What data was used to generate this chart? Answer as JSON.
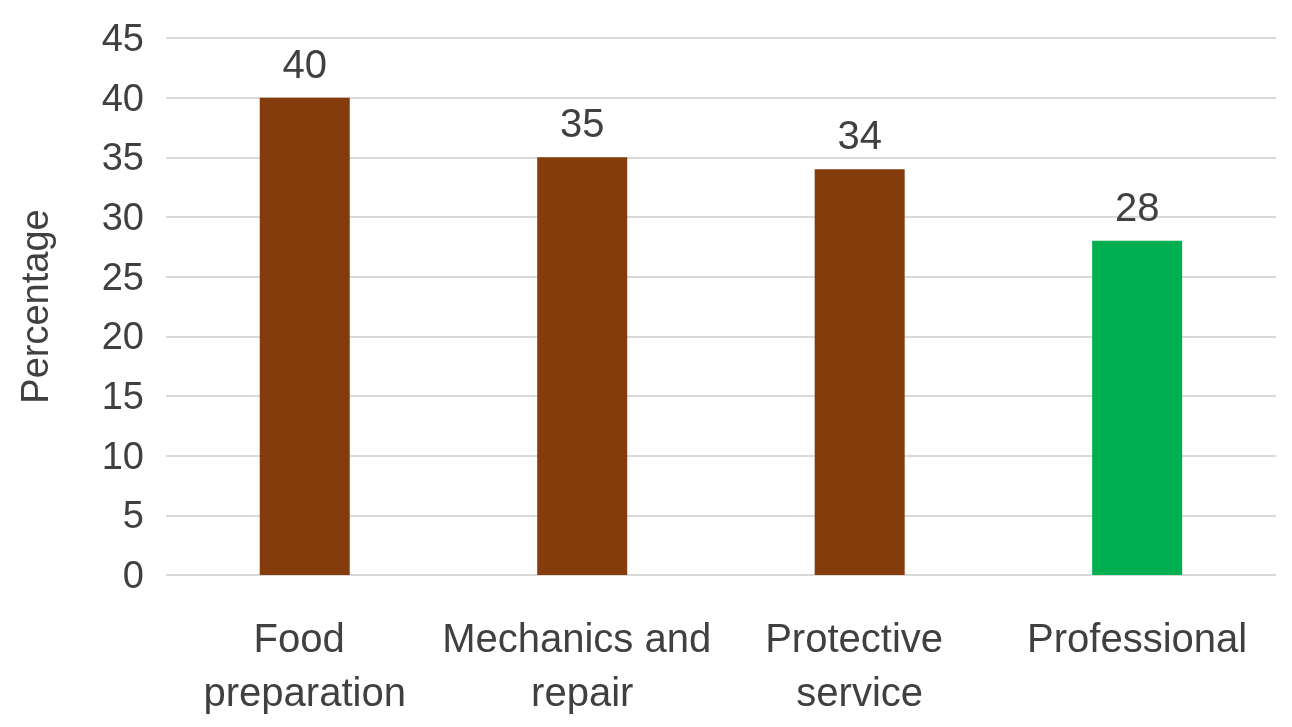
{
  "chart_data": {
    "type": "bar",
    "ylabel": "Percentage",
    "categories": [
      "Food preparation",
      "Mechanics and repair",
      "Protective service",
      "Professional"
    ],
    "values": [
      40,
      35,
      34,
      28
    ],
    "colors": [
      "#843c0c",
      "#843c0c",
      "#843c0c",
      "#00b050"
    ],
    "ylim": [
      0,
      45
    ],
    "yticks": [
      0,
      5,
      10,
      15,
      20,
      25,
      30,
      35,
      40,
      45
    ],
    "grid": "y",
    "data_labels": true
  }
}
